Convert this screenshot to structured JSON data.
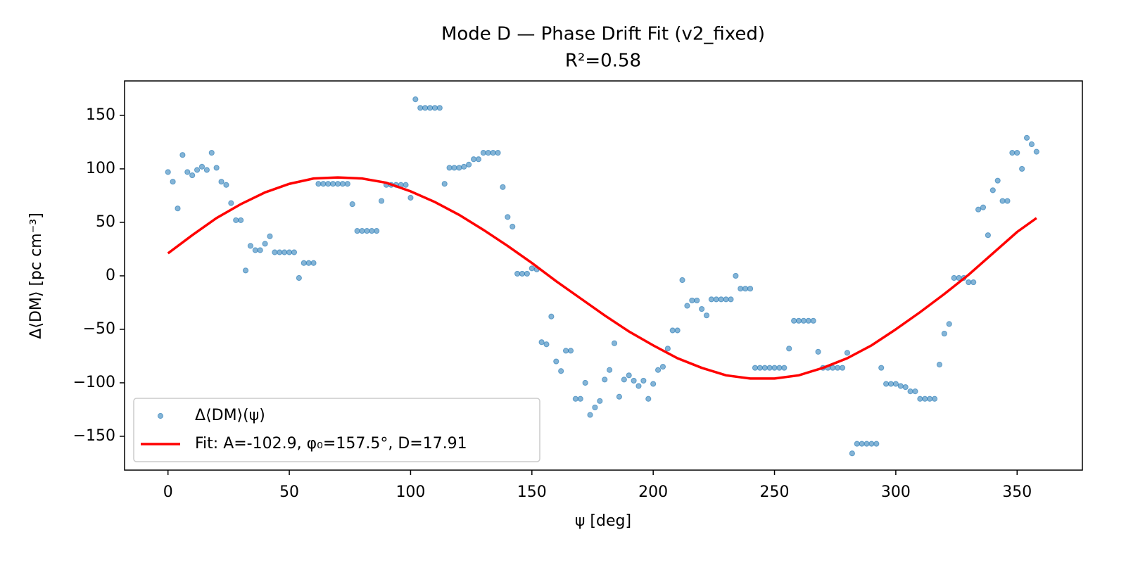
{
  "chart_data": {
    "type": "scatter",
    "title": "Mode D — Phase Drift Fit (v2_fixed)",
    "subtitle": "R²=0.58",
    "x_label": "ψ [deg]",
    "y_label": "Δ⟨DM⟩ [pc cm⁻³]",
    "xlim": [
      -17.9,
      376.9
    ],
    "ylim": [
      -181.6,
      182.2
    ],
    "xticks": [
      0,
      50,
      100,
      150,
      200,
      250,
      300,
      350
    ],
    "yticks": [
      {
        "value": -150,
        "label": "−150"
      },
      {
        "value": -100,
        "label": "−100"
      },
      {
        "value": -50,
        "label": "−50"
      },
      0,
      50,
      100,
      150
    ],
    "grid": false,
    "legend_position": "lower left",
    "series": [
      {
        "name": "Δ⟨DM⟩(ψ)",
        "type": "scatter",
        "color": "#1f77b4",
        "x": [
          0,
          2,
          4,
          6,
          8,
          10,
          12,
          14,
          16,
          18,
          20,
          22,
          24,
          26,
          28,
          30,
          32,
          34,
          36,
          38,
          40,
          42,
          44,
          46,
          48,
          50,
          52,
          54,
          56,
          58,
          60,
          62,
          64,
          66,
          68,
          70,
          72,
          74,
          76,
          78,
          80,
          82,
          84,
          86,
          88,
          90,
          92,
          94,
          96,
          98,
          100,
          102,
          104,
          106,
          108,
          110,
          112,
          114,
          116,
          118,
          120,
          122,
          124,
          126,
          128,
          130,
          132,
          134,
          136,
          138,
          140,
          142,
          144,
          146,
          148,
          150,
          152,
          154,
          156,
          158,
          160,
          162,
          164,
          166,
          168,
          170,
          172,
          174,
          176,
          178,
          180,
          182,
          184,
          186,
          188,
          190,
          192,
          194,
          196,
          198,
          200,
          202,
          204,
          206,
          208,
          210,
          212,
          214,
          216,
          218,
          220,
          222,
          224,
          226,
          228,
          230,
          232,
          234,
          236,
          238,
          240,
          242,
          244,
          246,
          248,
          250,
          252,
          254,
          256,
          258,
          260,
          262,
          264,
          266,
          268,
          270,
          272,
          274,
          276,
          278,
          280,
          282,
          284,
          286,
          288,
          290,
          292,
          294,
          296,
          298,
          300,
          302,
          304,
          306,
          308,
          310,
          312,
          314,
          316,
          318,
          320,
          322,
          324,
          326,
          328,
          330,
          332,
          334,
          336,
          338,
          340,
          342,
          344,
          346,
          348,
          350,
          352,
          354,
          356,
          358
        ],
        "values": [
          97,
          88,
          63,
          113,
          97,
          94,
          99,
          102,
          99,
          115,
          101,
          88,
          85,
          68,
          52,
          52,
          5,
          28,
          24,
          24,
          30,
          37,
          22,
          22,
          22,
          22,
          22,
          -2,
          12,
          12,
          12,
          86,
          86,
          86,
          86,
          86,
          86,
          86,
          67,
          42,
          42,
          42,
          42,
          42,
          70,
          85,
          85,
          85,
          85,
          85,
          73,
          165,
          157,
          157,
          157,
          157,
          157,
          86,
          101,
          101,
          101,
          102,
          104,
          109,
          109,
          115,
          115,
          115,
          115,
          83,
          55,
          46,
          2,
          2,
          2,
          7,
          6,
          -62,
          -64,
          -38,
          -80,
          -89,
          -70,
          -70,
          -115,
          -115,
          -100,
          -130,
          -123,
          -117,
          -97,
          -88,
          -63,
          -113,
          -97,
          -93,
          -98,
          -103,
          -98,
          -115,
          -101,
          -88,
          -85,
          -68,
          -51,
          -51,
          -4,
          -28,
          -23,
          -23,
          -31,
          -37,
          -22,
          -22,
          -22,
          -22,
          -22,
          0,
          -12,
          -12,
          -12,
          -86,
          -86,
          -86,
          -86,
          -86,
          -86,
          -86,
          -68,
          -42,
          -42,
          -42,
          -42,
          -42,
          -71,
          -86,
          -86,
          -86,
          -86,
          -86,
          -72,
          -166,
          -157,
          -157,
          -157,
          -157,
          -157,
          -86,
          -101,
          -101,
          -101,
          -103,
          -104,
          -108,
          -108,
          -115,
          -115,
          -115,
          -115,
          -83,
          -54,
          -45,
          -2,
          -2,
          -2,
          -6,
          -6,
          62,
          64,
          38,
          80,
          89,
          70,
          70,
          115,
          115,
          100,
          129,
          123,
          116
        ]
      },
      {
        "name": "Fit: A=-102.9, φ₀=157.5°, D=17.91",
        "type": "line",
        "color": "#ff0000",
        "x": [
          0,
          10,
          20,
          30,
          40,
          50,
          60,
          70,
          80,
          90,
          100,
          110,
          120,
          130,
          140,
          150,
          160,
          170,
          180,
          190,
          200,
          210,
          220,
          230,
          240,
          250,
          260,
          270,
          280,
          290,
          300,
          310,
          320,
          330,
          340,
          350,
          358
        ],
        "values": [
          21,
          38,
          54,
          67,
          78,
          86,
          91,
          92,
          91,
          87,
          79,
          69,
          57,
          43,
          28,
          12,
          -5,
          -21,
          -37,
          -52,
          -65,
          -77,
          -86,
          -93,
          -96,
          -96,
          -93,
          -86,
          -77,
          -65,
          -50,
          -34,
          -17,
          1,
          21,
          41,
          54
        ]
      }
    ]
  }
}
